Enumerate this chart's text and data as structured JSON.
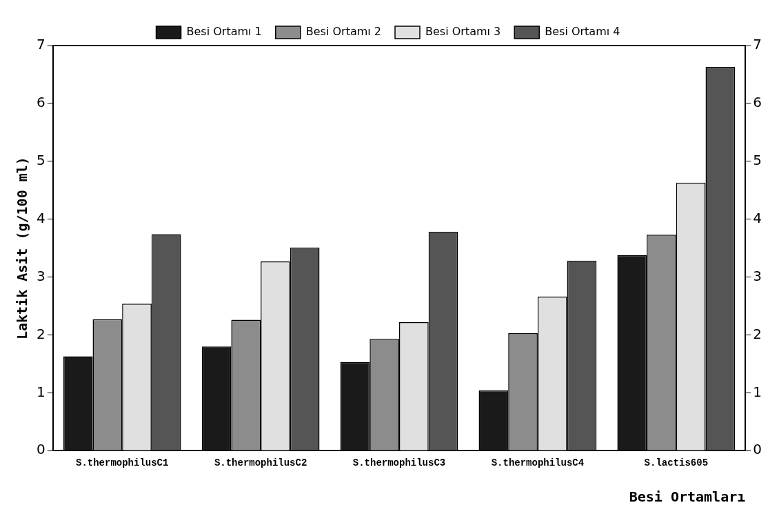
{
  "chart_data": {
    "type": "bar",
    "xlabel": "Besi Ortamları",
    "ylabel": "Laktik Asit (g/100 ml)",
    "categories": [
      "S.thermophilusC1",
      "S.thermophilusC2",
      "S.thermophilusC3",
      "S.thermophilusC4",
      "S.lactis605"
    ],
    "series": [
      {
        "name": "Besi Ortamı 1",
        "color": "#1a1a1a",
        "values": [
          1.63,
          1.8,
          1.53,
          1.04,
          3.38
        ]
      },
      {
        "name": "Besi Ortamı 2",
        "color": "#8c8c8c",
        "values": [
          2.27,
          2.26,
          1.93,
          2.03,
          3.73
        ]
      },
      {
        "name": "Besi Ortamı 3",
        "color": "#e0e0e0",
        "values": [
          2.54,
          3.27,
          2.22,
          2.66,
          4.63
        ]
      },
      {
        "name": "Besi Ortamı 4",
        "color": "#555555",
        "values": [
          3.74,
          3.51,
          3.78,
          3.28,
          6.63
        ]
      }
    ],
    "ylim": [
      0,
      7
    ],
    "yticks": [
      0,
      1,
      2,
      3,
      4,
      5,
      6,
      7
    ],
    "y2lim": [
      0,
      7
    ],
    "y2ticks": [
      0,
      1,
      2,
      3,
      4,
      5,
      6,
      7
    ],
    "grid": false,
    "legend": "top"
  }
}
